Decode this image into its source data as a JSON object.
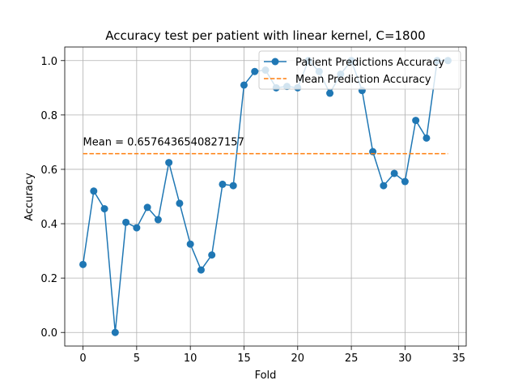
{
  "chart_data": {
    "type": "line",
    "title": "Accuracy test per patient with linear kernel, C=1800",
    "xlabel": "Fold",
    "ylabel": "Accuracy",
    "xlim": [
      -1.7,
      35.7
    ],
    "ylim": [
      -0.05,
      1.05
    ],
    "xticks": [
      0,
      5,
      10,
      15,
      20,
      25,
      30,
      35
    ],
    "yticks": [
      0.0,
      0.2,
      0.4,
      0.6,
      0.8,
      1.0
    ],
    "grid": true,
    "legend_position": "top-right",
    "series": [
      {
        "name": "Patient Predictions Accuracy",
        "style": "solid-with-circle-markers",
        "color": "#1f77b4",
        "x": [
          0,
          1,
          2,
          3,
          4,
          5,
          6,
          7,
          8,
          9,
          10,
          11,
          12,
          13,
          14,
          15,
          16,
          17,
          18,
          19,
          20,
          21,
          22,
          23,
          24,
          25,
          26,
          27,
          28,
          29,
          30,
          31,
          32,
          33,
          34
        ],
        "y": [
          0.25,
          0.52,
          0.455,
          0.0,
          0.405,
          0.385,
          0.46,
          0.415,
          0.625,
          0.475,
          0.325,
          0.23,
          0.285,
          0.545,
          0.54,
          0.91,
          0.96,
          0.965,
          0.9,
          0.905,
          0.9,
          1.0,
          0.96,
          0.88,
          0.95,
          1.0,
          0.89,
          0.665,
          0.54,
          0.585,
          0.555,
          0.78,
          0.715,
          1.0,
          1.0
        ]
      },
      {
        "name": "Mean Prediction Accuracy",
        "style": "dashed",
        "color": "#ff7f0e",
        "x": [
          0,
          34
        ],
        "y": [
          0.6576436540827157,
          0.6576436540827157
        ]
      }
    ],
    "annotations": [
      {
        "text": "Mean = 0.6576436540827157",
        "x": 0,
        "y": 0.7
      }
    ]
  }
}
